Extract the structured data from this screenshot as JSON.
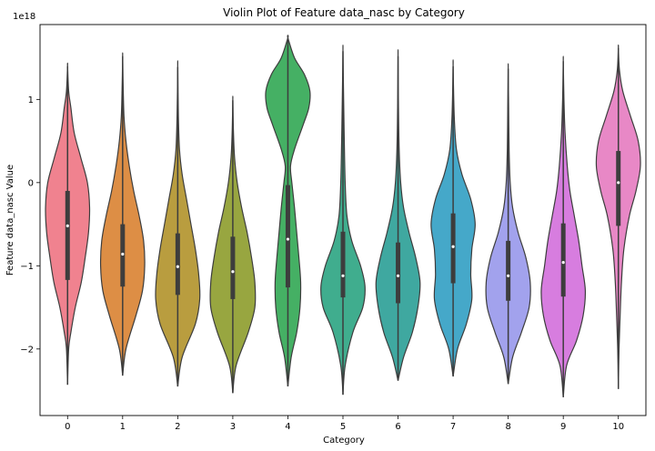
{
  "chart_data": {
    "type": "violin",
    "title": "Violin Plot of Feature data_nasc by Category",
    "xlabel": "Category",
    "ylabel": "Feature data_nasc Value",
    "y_offset_label": "1e18",
    "y_scale_note": "values in units of 1e18",
    "ylim": [
      -2.8,
      1.9
    ],
    "yticks": [
      -2,
      -1,
      0,
      1
    ],
    "ytick_labels": [
      "−2",
      "−1",
      "0",
      "1"
    ],
    "categories": [
      "0",
      "1",
      "2",
      "3",
      "4",
      "5",
      "6",
      "7",
      "8",
      "9",
      "10"
    ],
    "colors": [
      "#f0828f",
      "#dd8e45",
      "#b99d3f",
      "#98a640",
      "#45b064",
      "#40ad8e",
      "#3fa8a0",
      "#45a8c9",
      "#a2a2ed",
      "#d77ddf",
      "#e888c6"
    ],
    "violins": [
      {
        "category": "0",
        "min": -2.43,
        "q1": -1.17,
        "median": -0.52,
        "q3": -0.1,
        "max": 1.4,
        "profile": [
          [
            -2.43,
            0.0
          ],
          [
            -2.0,
            0.05
          ],
          [
            -1.8,
            0.15
          ],
          [
            -1.5,
            0.35
          ],
          [
            -1.2,
            0.62
          ],
          [
            -0.9,
            0.8
          ],
          [
            -0.6,
            0.95
          ],
          [
            -0.3,
            1.0
          ],
          [
            0.0,
            0.9
          ],
          [
            0.3,
            0.6
          ],
          [
            0.6,
            0.3
          ],
          [
            0.9,
            0.15
          ],
          [
            1.1,
            0.05
          ],
          [
            1.4,
            0.0
          ]
        ]
      },
      {
        "category": "1",
        "min": -2.32,
        "q1": -1.25,
        "median": -0.86,
        "q3": -0.5,
        "max": 1.52,
        "profile": [
          [
            -2.32,
            0.0
          ],
          [
            -2.0,
            0.15
          ],
          [
            -1.6,
            0.6
          ],
          [
            -1.3,
            0.9
          ],
          [
            -1.0,
            1.0
          ],
          [
            -0.7,
            0.95
          ],
          [
            -0.4,
            0.75
          ],
          [
            -0.1,
            0.5
          ],
          [
            0.2,
            0.3
          ],
          [
            0.5,
            0.15
          ],
          [
            0.8,
            0.06
          ],
          [
            1.2,
            0.02
          ],
          [
            1.52,
            0.0
          ]
        ]
      },
      {
        "category": "2",
        "min": -2.45,
        "q1": -1.35,
        "median": -1.01,
        "q3": -0.61,
        "max": 1.39,
        "profile": [
          [
            -2.45,
            0.0
          ],
          [
            -2.1,
            0.2
          ],
          [
            -1.7,
            0.8
          ],
          [
            -1.4,
            1.0
          ],
          [
            -1.1,
            0.95
          ],
          [
            -0.8,
            0.8
          ],
          [
            -0.5,
            0.6
          ],
          [
            -0.2,
            0.4
          ],
          [
            0.1,
            0.2
          ],
          [
            0.4,
            0.08
          ],
          [
            0.8,
            0.03
          ],
          [
            1.39,
            0.0
          ]
        ]
      },
      {
        "category": "3",
        "min": -2.53,
        "q1": -1.4,
        "median": -1.07,
        "q3": -0.65,
        "max": 0.99,
        "profile": [
          [
            -2.53,
            0.0
          ],
          [
            -2.2,
            0.15
          ],
          [
            -1.8,
            0.7
          ],
          [
            -1.5,
            1.0
          ],
          [
            -1.2,
            1.0
          ],
          [
            -0.9,
            0.85
          ],
          [
            -0.6,
            0.65
          ],
          [
            -0.3,
            0.4
          ],
          [
            0.0,
            0.2
          ],
          [
            0.3,
            0.08
          ],
          [
            0.6,
            0.03
          ],
          [
            0.99,
            0.0
          ]
        ]
      },
      {
        "category": "4",
        "min": -2.45,
        "q1": -1.26,
        "median": -0.68,
        "q3": -0.03,
        "max": 1.74,
        "profile": [
          [
            -2.45,
            0.0
          ],
          [
            -2.1,
            0.15
          ],
          [
            -1.8,
            0.4
          ],
          [
            -1.5,
            0.55
          ],
          [
            -1.2,
            0.58
          ],
          [
            -0.9,
            0.5
          ],
          [
            -0.6,
            0.4
          ],
          [
            -0.3,
            0.3
          ],
          [
            0.0,
            0.18
          ],
          [
            0.2,
            0.12
          ],
          [
            0.4,
            0.3
          ],
          [
            0.7,
            0.7
          ],
          [
            0.9,
            0.95
          ],
          [
            1.1,
            1.0
          ],
          [
            1.3,
            0.75
          ],
          [
            1.5,
            0.3
          ],
          [
            1.74,
            0.0
          ]
        ]
      },
      {
        "category": "5",
        "min": -2.55,
        "q1": -1.38,
        "median": -1.12,
        "q3": -0.59,
        "max": 1.58,
        "profile": [
          [
            -2.55,
            0.0
          ],
          [
            -2.2,
            0.1
          ],
          [
            -1.8,
            0.45
          ],
          [
            -1.5,
            0.9
          ],
          [
            -1.25,
            1.0
          ],
          [
            -1.0,
            0.8
          ],
          [
            -0.7,
            0.4
          ],
          [
            -0.4,
            0.18
          ],
          [
            0.0,
            0.1
          ],
          [
            0.5,
            0.06
          ],
          [
            1.0,
            0.03
          ],
          [
            1.58,
            0.0
          ]
        ]
      },
      {
        "category": "6",
        "min": -2.38,
        "q1": -1.45,
        "median": -1.12,
        "q3": -0.72,
        "max": 1.52,
        "profile": [
          [
            -2.38,
            0.0
          ],
          [
            -2.1,
            0.25
          ],
          [
            -1.8,
            0.65
          ],
          [
            -1.5,
            0.9
          ],
          [
            -1.2,
            1.0
          ],
          [
            -0.9,
            0.8
          ],
          [
            -0.6,
            0.5
          ],
          [
            -0.3,
            0.25
          ],
          [
            0.0,
            0.12
          ],
          [
            0.4,
            0.05
          ],
          [
            0.9,
            0.02
          ],
          [
            1.52,
            0.0
          ]
        ]
      },
      {
        "category": "7",
        "min": -2.33,
        "q1": -1.21,
        "median": -0.77,
        "q3": -0.37,
        "max": 1.4,
        "profile": [
          [
            -2.33,
            0.0
          ],
          [
            -2.0,
            0.2
          ],
          [
            -1.7,
            0.6
          ],
          [
            -1.4,
            0.85
          ],
          [
            -1.1,
            0.8
          ],
          [
            -0.8,
            0.85
          ],
          [
            -0.5,
            1.0
          ],
          [
            -0.2,
            0.8
          ],
          [
            0.1,
            0.4
          ],
          [
            0.4,
            0.15
          ],
          [
            0.8,
            0.05
          ],
          [
            1.4,
            0.0
          ]
        ]
      },
      {
        "category": "8",
        "min": -2.42,
        "q1": -1.42,
        "median": -1.12,
        "q3": -0.7,
        "max": 1.37,
        "profile": [
          [
            -2.42,
            0.0
          ],
          [
            -2.1,
            0.2
          ],
          [
            -1.8,
            0.6
          ],
          [
            -1.5,
            0.95
          ],
          [
            -1.2,
            1.0
          ],
          [
            -0.9,
            0.8
          ],
          [
            -0.6,
            0.45
          ],
          [
            -0.3,
            0.2
          ],
          [
            0.0,
            0.09
          ],
          [
            0.4,
            0.04
          ],
          [
            0.9,
            0.02
          ],
          [
            1.37,
            0.0
          ]
        ]
      },
      {
        "category": "9",
        "min": -2.58,
        "q1": -1.37,
        "median": -0.96,
        "q3": -0.49,
        "max": 1.46,
        "profile": [
          [
            -2.58,
            0.0
          ],
          [
            -2.2,
            0.15
          ],
          [
            -1.9,
            0.6
          ],
          [
            -1.6,
            0.9
          ],
          [
            -1.3,
            1.0
          ],
          [
            -1.0,
            0.85
          ],
          [
            -0.7,
            0.7
          ],
          [
            -0.4,
            0.5
          ],
          [
            -0.1,
            0.3
          ],
          [
            0.2,
            0.18
          ],
          [
            0.6,
            0.08
          ],
          [
            1.0,
            0.03
          ],
          [
            1.46,
            0.0
          ]
        ]
      },
      {
        "category": "10",
        "min": -2.48,
        "q1": -0.52,
        "median": 0.0,
        "q3": 0.38,
        "max": 1.62,
        "profile": [
          [
            -2.48,
            0.0
          ],
          [
            -2.0,
            0.03
          ],
          [
            -1.6,
            0.08
          ],
          [
            -1.2,
            0.14
          ],
          [
            -0.8,
            0.25
          ],
          [
            -0.4,
            0.5
          ],
          [
            -0.1,
            0.8
          ],
          [
            0.2,
            1.0
          ],
          [
            0.5,
            0.9
          ],
          [
            0.8,
            0.55
          ],
          [
            1.1,
            0.2
          ],
          [
            1.35,
            0.05
          ],
          [
            1.62,
            0.0
          ]
        ]
      }
    ]
  }
}
